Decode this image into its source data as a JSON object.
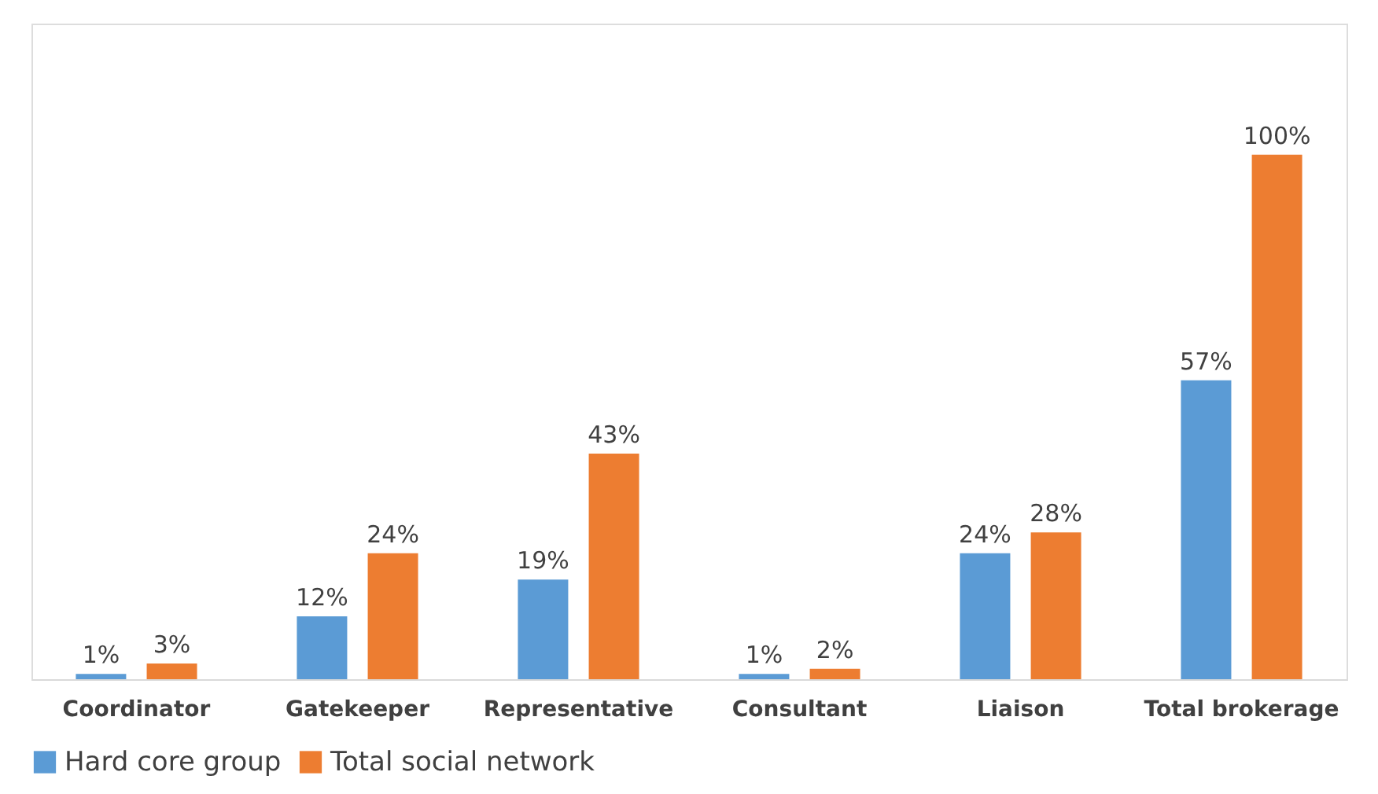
{
  "chart_data": {
    "type": "bar",
    "categories": [
      "Coordinator",
      "Gatekeeper",
      "Representative",
      "Consultant",
      "Liaison",
      "Total brokerage"
    ],
    "series": [
      {
        "name": "Hard core group",
        "color": "#5b9bd5",
        "values": [
          1,
          12,
          19,
          1,
          24,
          57
        ],
        "value_labels": [
          "1%",
          "12%",
          "19%",
          "1%",
          "24%",
          "57%"
        ]
      },
      {
        "name": "Total social network",
        "color": "#ed7d31",
        "values": [
          3,
          24,
          43,
          2,
          28,
          100
        ],
        "value_labels": [
          "3%",
          "24%",
          "43%",
          "2%",
          "28%",
          "100%"
        ]
      }
    ],
    "ylim": [
      0,
      125
    ],
    "grid": false,
    "legend": "bottom",
    "tick_labels": "x"
  }
}
